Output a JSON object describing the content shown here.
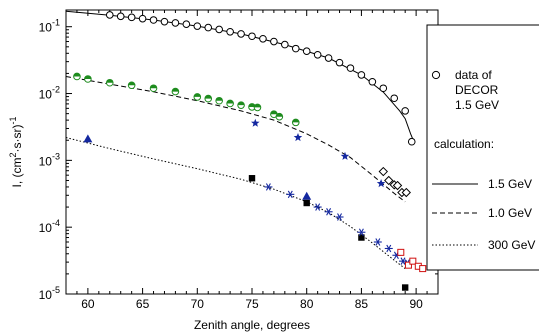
{
  "chart_data": {
    "type": "scatter",
    "xlabel": "Zenith angle, degrees",
    "ylabel": "I, (cm",
    "ylabel_sup": "2",
    "ylabel_mid": "·s·sr)",
    "ylabel_sup2": "-1",
    "xlim": [
      58,
      92
    ],
    "ylim_log10": [
      -5,
      -0.75
    ],
    "y_scale": "log",
    "x_ticks": [
      60,
      65,
      70,
      75,
      80,
      85,
      90
    ],
    "x_tick_labels": [
      "60",
      "65",
      "70",
      "75",
      "80",
      "85",
      "90"
    ],
    "y_ticks": [
      -5,
      -4,
      -3,
      -2,
      -1
    ],
    "y_tick_bases": [
      "10",
      "10",
      "10",
      "10",
      "10"
    ],
    "y_tick_exps": [
      "-5",
      "-4",
      "-3",
      "-2",
      "-1"
    ],
    "legend_position": "right",
    "legend": {
      "data_label_lines": [
        "data of",
        "DECOR",
        "1.5 GeV"
      ],
      "calc_title": "calculation:",
      "line_labels": [
        "1.5 GeV",
        "1.0 GeV",
        "300 GeV"
      ]
    },
    "curves": [
      {
        "style": "solid",
        "color": "#000000",
        "points": [
          [
            58,
            0.17
          ],
          [
            62,
            0.148
          ],
          [
            66,
            0.126
          ],
          [
            70,
            0.102
          ],
          [
            74,
            0.078
          ],
          [
            78,
            0.054
          ],
          [
            82,
            0.034
          ],
          [
            85,
            0.019
          ],
          [
            87,
            0.0105
          ],
          [
            88.5,
            0.0055
          ],
          [
            89,
            0.0042
          ],
          [
            89.5,
            0.0025
          ],
          [
            89.8,
            0.0019
          ]
        ]
      },
      {
        "style": "dashed",
        "color": "#000000",
        "points": [
          [
            58,
            0.018
          ],
          [
            62,
            0.0138
          ],
          [
            66,
            0.0106
          ],
          [
            70,
            0.0078
          ],
          [
            74,
            0.0055
          ],
          [
            77,
            0.004
          ],
          [
            80,
            0.0025
          ],
          [
            82,
            0.0017
          ],
          [
            84,
            0.0011
          ],
          [
            86,
            0.0006
          ],
          [
            88,
            0.00032
          ],
          [
            89,
            0.00024
          ]
        ]
      },
      {
        "style": "dotted",
        "color": "#000000",
        "points": [
          [
            58,
            0.0022
          ],
          [
            62,
            0.0015
          ],
          [
            66,
            0.00105
          ],
          [
            70,
            0.00075
          ],
          [
            74,
            0.00052
          ],
          [
            77,
            0.00037
          ],
          [
            80,
            0.00024
          ],
          [
            82,
            0.000165
          ],
          [
            84,
            0.000102
          ],
          [
            86,
            5.8e-05
          ],
          [
            88,
            3.2e-05
          ],
          [
            89,
            2.4e-05
          ]
        ]
      }
    ],
    "series": [
      {
        "marker": "open-circle",
        "color": "#000000",
        "points": [
          [
            62,
            0.15
          ],
          [
            63,
            0.143
          ],
          [
            64,
            0.138
          ],
          [
            65,
            0.132
          ],
          [
            66,
            0.126
          ],
          [
            67,
            0.119
          ],
          [
            68,
            0.114
          ],
          [
            69,
            0.109
          ],
          [
            70,
            0.102
          ],
          [
            71,
            0.097
          ],
          [
            72,
            0.091
          ],
          [
            73,
            0.084
          ],
          [
            74,
            0.078
          ],
          [
            75,
            0.072
          ],
          [
            76,
            0.066
          ],
          [
            77,
            0.06
          ],
          [
            78,
            0.054
          ],
          [
            79,
            0.047
          ],
          [
            80,
            0.043
          ],
          [
            81,
            0.038
          ],
          [
            82,
            0.034
          ],
          [
            83,
            0.029
          ],
          [
            84,
            0.024
          ],
          [
            85,
            0.019
          ],
          [
            86,
            0.015
          ],
          [
            87,
            0.012
          ],
          [
            88,
            0.0085
          ],
          [
            89,
            0.0055
          ],
          [
            89.6,
            0.0019
          ]
        ]
      },
      {
        "marker": "green-half-circle",
        "color": "#1e8c1e",
        "points": [
          [
            59,
            0.018
          ],
          [
            60,
            0.0165
          ],
          [
            62,
            0.0145
          ],
          [
            64,
            0.0133
          ],
          [
            66,
            0.012
          ],
          [
            68,
            0.0107
          ],
          [
            70,
            0.0089
          ],
          [
            71,
            0.0084
          ],
          [
            72,
            0.0078
          ],
          [
            73,
            0.0071
          ],
          [
            74,
            0.0067
          ],
          [
            75,
            0.0063
          ],
          [
            75.5,
            0.0062
          ],
          [
            77,
            0.0049
          ],
          [
            77.5,
            0.0045
          ],
          [
            79,
            0.0037
          ]
        ]
      },
      {
        "marker": "blue-star",
        "color": "#1428a0",
        "points": [
          [
            75.3,
            0.0036
          ],
          [
            79.2,
            0.0022
          ],
          [
            83.5,
            0.00115
          ],
          [
            86.8,
            0.00045
          ]
        ]
      },
      {
        "marker": "open-diamond",
        "color": "#000000",
        "points": [
          [
            87,
            0.00068
          ],
          [
            87.5,
            0.0005
          ],
          [
            88,
            0.00043
          ],
          [
            88.7,
            0.00033
          ],
          [
            89.1,
            0.00033
          ],
          [
            88.3,
            0.00042
          ]
        ]
      },
      {
        "marker": "blue-triangle",
        "color": "#1428a0",
        "points": [
          [
            60,
            0.0021
          ],
          [
            80,
            0.00029
          ]
        ]
      },
      {
        "marker": "black-square",
        "color": "#000000",
        "points": [
          [
            75,
            0.00054
          ],
          [
            80,
            0.00023
          ],
          [
            85,
            7e-05
          ],
          [
            89,
            1.25e-05
          ]
        ]
      },
      {
        "marker": "blue-asterisk",
        "color": "#1428a0",
        "points": [
          [
            76.5,
            0.0004
          ],
          [
            78.5,
            0.00031
          ],
          [
            81,
            0.0002
          ],
          [
            82,
            0.00017
          ],
          [
            83,
            0.000142
          ],
          [
            85,
            8.4e-05
          ],
          [
            86.5,
            6e-05
          ],
          [
            87.5,
            4.8e-05
          ],
          [
            88.2,
            3.8e-05
          ],
          [
            88.8,
            3.1e-05
          ],
          [
            89.2,
            2.9e-05
          ]
        ]
      },
      {
        "marker": "red-open-square",
        "color": "#d01010",
        "points": [
          [
            88.6,
            4.2e-05
          ],
          [
            89.3,
            2.7e-05
          ],
          [
            89.7,
            3.1e-05
          ],
          [
            90.2,
            2.6e-05
          ],
          [
            90.6,
            2.4e-05
          ]
        ]
      }
    ]
  }
}
